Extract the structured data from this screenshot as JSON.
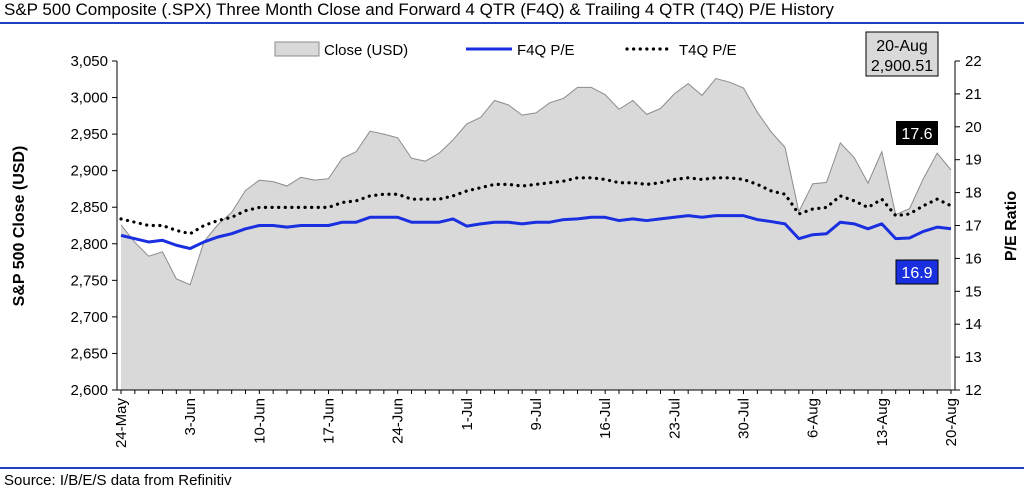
{
  "header": {
    "title": "S&P 500 Composite (.SPX) Three Month Close and Forward 4 QTR (F4Q) & Trailing 4 QTR (T4Q) P/E History"
  },
  "footer": {
    "source": "Source: I/B/E/S data from Refinitiv"
  },
  "colors": {
    "rule": "#1f3fbf",
    "area_fill": "#d9d9d9",
    "area_stroke": "#8c8c8c",
    "f4q_line": "#1a2fe0",
    "t4q_line": "#000000",
    "f4q_label_bg": "#1a2fe0",
    "t4q_label_bg": "#000000",
    "close_label_bg": "#d9d9d9"
  },
  "chart_data": {
    "type": "area",
    "ylabel": "S&P 500 Close (USD)",
    "y2label": "P/E Ratio",
    "ylim": [
      2600,
      3050
    ],
    "y2lim": [
      12,
      22
    ],
    "yticks": [
      "2,600",
      "2,650",
      "2,700",
      "2,750",
      "2,800",
      "2,850",
      "2,900",
      "2,950",
      "3,000",
      "3,050"
    ],
    "y2ticks": [
      "12",
      "13",
      "14",
      "15",
      "16",
      "17",
      "18",
      "19",
      "20",
      "21",
      "22"
    ],
    "xtick_labels": [
      "24-May",
      "3-Jun",
      "10-Jun",
      "17-Jun",
      "24-Jun",
      "1-Jul",
      "9-Jul",
      "16-Jul",
      "23-Jul",
      "30-Jul",
      "6-Aug",
      "13-Aug",
      "20-Aug"
    ],
    "xtick_index": [
      0,
      5,
      10,
      15,
      20,
      25,
      30,
      35,
      40,
      45,
      50,
      55,
      60
    ],
    "legend": [
      "Close (USD)",
      "F4Q P/E",
      "T4Q P/E"
    ],
    "legend_position": "top",
    "x": [
      "24-May",
      "28-May",
      "29-May",
      "30-May",
      "31-May",
      "3-Jun",
      "4-Jun",
      "5-Jun",
      "6-Jun",
      "7-Jun",
      "10-Jun",
      "11-Jun",
      "12-Jun",
      "13-Jun",
      "14-Jun",
      "17-Jun",
      "18-Jun",
      "19-Jun",
      "20-Jun",
      "21-Jun",
      "24-Jun",
      "25-Jun",
      "26-Jun",
      "27-Jun",
      "28-Jun",
      "1-Jul",
      "2-Jul",
      "3-Jul",
      "5-Jul",
      "8-Jul",
      "9-Jul",
      "10-Jul",
      "11-Jul",
      "12-Jul",
      "15-Jul",
      "16-Jul",
      "17-Jul",
      "18-Jul",
      "19-Jul",
      "22-Jul",
      "23-Jul",
      "24-Jul",
      "25-Jul",
      "26-Jul",
      "29-Jul",
      "30-Jul",
      "31-Jul",
      "1-Aug",
      "2-Aug",
      "5-Aug",
      "6-Aug",
      "7-Aug",
      "8-Aug",
      "9-Aug",
      "12-Aug",
      "13-Aug",
      "14-Aug",
      "15-Aug",
      "16-Aug",
      "19-Aug",
      "20-Aug"
    ],
    "series": [
      {
        "name": "Close (USD)",
        "axis": "left",
        "style": "area",
        "values": [
          2826,
          2802,
          2783,
          2789,
          2752,
          2744,
          2803,
          2826,
          2843,
          2873,
          2887,
          2885,
          2879,
          2891,
          2887,
          2889,
          2917,
          2926,
          2954,
          2950,
          2945,
          2917,
          2913,
          2924,
          2942,
          2964,
          2973,
          2996,
          2990,
          2976,
          2979,
          2993,
          2999,
          3014,
          3014,
          3004,
          2984,
          2996,
          2977,
          2985,
          3005,
          3019,
          3003,
          3026,
          3021,
          3013,
          2980,
          2953,
          2932,
          2844,
          2882,
          2884,
          2938,
          2918,
          2883,
          2926,
          2840,
          2848,
          2889,
          2924,
          2901
        ]
      },
      {
        "name": "F4Q P/E",
        "axis": "right",
        "style": "line",
        "values": [
          16.7,
          16.6,
          16.5,
          16.55,
          16.4,
          16.3,
          16.5,
          16.65,
          16.75,
          16.9,
          17.0,
          17.0,
          16.95,
          17.0,
          17.0,
          17.0,
          17.1,
          17.1,
          17.25,
          17.25,
          17.25,
          17.1,
          17.1,
          17.1,
          17.2,
          16.98,
          17.05,
          17.1,
          17.1,
          17.05,
          17.1,
          17.1,
          17.18,
          17.2,
          17.25,
          17.25,
          17.15,
          17.2,
          17.15,
          17.2,
          17.25,
          17.3,
          17.25,
          17.3,
          17.3,
          17.3,
          17.18,
          17.12,
          17.05,
          16.6,
          16.72,
          16.75,
          17.1,
          17.05,
          16.9,
          17.05,
          16.6,
          16.62,
          16.82,
          16.95,
          16.9
        ]
      },
      {
        "name": "T4Q P/E",
        "axis": "right",
        "style": "dotted",
        "values": [
          17.2,
          17.1,
          17.0,
          17.0,
          16.85,
          16.75,
          17.0,
          17.15,
          17.25,
          17.45,
          17.55,
          17.55,
          17.55,
          17.55,
          17.55,
          17.55,
          17.7,
          17.75,
          17.9,
          17.95,
          17.95,
          17.8,
          17.8,
          17.8,
          17.9,
          18.05,
          18.15,
          18.25,
          18.25,
          18.2,
          18.25,
          18.3,
          18.35,
          18.45,
          18.45,
          18.4,
          18.3,
          18.3,
          18.25,
          18.3,
          18.4,
          18.45,
          18.4,
          18.45,
          18.45,
          18.4,
          18.25,
          18.05,
          17.95,
          17.35,
          17.5,
          17.55,
          17.9,
          17.75,
          17.55,
          17.8,
          17.3,
          17.35,
          17.6,
          17.8,
          17.6
        ]
      }
    ],
    "annotations": {
      "close_label_date": "20-Aug",
      "close_label_value": "2,900.51",
      "t4q_label": "17.6",
      "f4q_label": "16.9"
    }
  }
}
